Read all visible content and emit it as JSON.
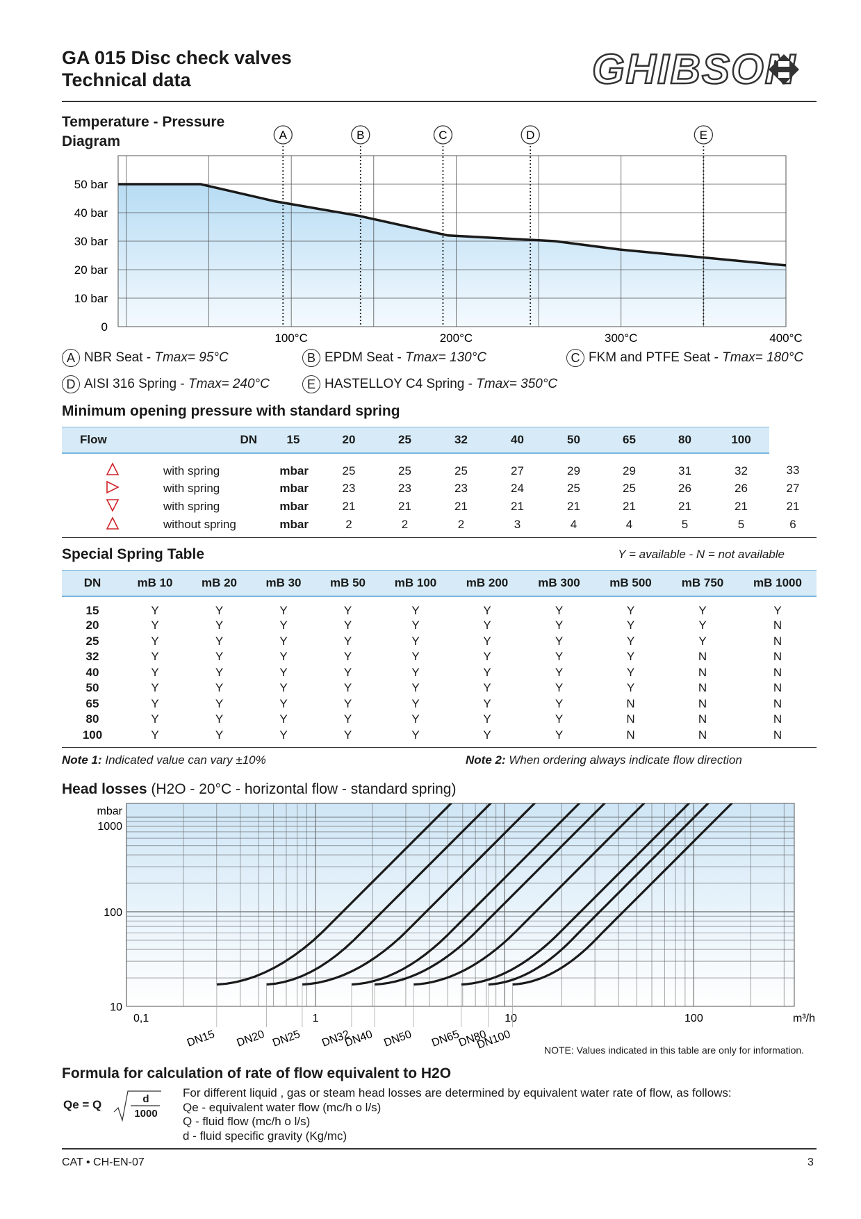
{
  "header": {
    "title_line1": "GA 015 Disc check valves",
    "title_line2": "Technical data",
    "logo_text": "GHIBSON"
  },
  "temp_pressure": {
    "title_line1": "Temperature - Pressure",
    "title_line2": "Diagram",
    "chart_data": {
      "type": "line",
      "x_unit": "°C",
      "y_ticks": [
        "0",
        "10 bar",
        "20 bar",
        "30 bar",
        "40 bar",
        "50 bar"
      ],
      "x_ticks": [
        "100°C",
        "200°C",
        "300°C",
        "400°C"
      ],
      "xlim": [
        -5,
        400
      ],
      "ylim": [
        0,
        60
      ],
      "series": [
        {
          "x": [
            -5,
            45,
            90,
            140,
            195,
            260,
            300,
            400
          ],
          "y": [
            50,
            50,
            44,
            39,
            32,
            30,
            27,
            21.5
          ]
        }
      ],
      "markers": [
        {
          "label": "A",
          "x": 95
        },
        {
          "label": "B",
          "x": 142
        },
        {
          "label": "C",
          "x": 192
        },
        {
          "label": "D",
          "x": 245
        },
        {
          "label": "E",
          "x": 350
        }
      ]
    },
    "legend": [
      {
        "letter": "A",
        "name": "NBR Seat - ",
        "tmax": "Tmax= 95°C"
      },
      {
        "letter": "B",
        "name": "EPDM Seat - ",
        "tmax": "Tmax= 130°C"
      },
      {
        "letter": "C",
        "name": "FKM and PTFE Seat - ",
        "tmax": "Tmax= 180°C"
      },
      {
        "letter": "D",
        "name": "AISI 316 Spring - ",
        "tmax": "Tmax= 240°C"
      },
      {
        "letter": "E",
        "name": "HASTELLOY C4 Spring - ",
        "tmax": "Tmax= 350°C"
      }
    ]
  },
  "opening_pressure": {
    "title": "Minimum opening pressure with standard spring",
    "chart_data": {
      "type": "table",
      "headers": [
        "Flow",
        "DN",
        "15",
        "20",
        "25",
        "32",
        "40",
        "50",
        "65",
        "80",
        "100"
      ],
      "rows": [
        {
          "icon": "triangle-up",
          "label": "with spring",
          "unit": "mbar",
          "values": [
            "25",
            "25",
            "25",
            "27",
            "29",
            "29",
            "31",
            "32",
            "33"
          ]
        },
        {
          "icon": "triangle-right",
          "label": "with spring",
          "unit": "mbar",
          "values": [
            "23",
            "23",
            "23",
            "24",
            "25",
            "25",
            "26",
            "26",
            "27"
          ]
        },
        {
          "icon": "triangle-down",
          "label": "with spring",
          "unit": "mbar",
          "values": [
            "21",
            "21",
            "21",
            "21",
            "21",
            "21",
            "21",
            "21",
            "21"
          ]
        },
        {
          "icon": "triangle-up",
          "label": "without spring",
          "unit": "mbar",
          "values": [
            "2",
            "2",
            "2",
            "3",
            "4",
            "4",
            "5",
            "5",
            "6"
          ]
        }
      ]
    }
  },
  "special_spring": {
    "title": "Special Spring Table",
    "availability_note": "Y = available - N = not available",
    "chart_data": {
      "type": "table",
      "headers": [
        "DN",
        "mB 10",
        "mB 20",
        "mB 30",
        "mB 50",
        "mB 100",
        "mB 200",
        "mB 300",
        "mB 500",
        "mB 750",
        "mB 1000"
      ],
      "rows": [
        [
          "15",
          "Y",
          "Y",
          "Y",
          "Y",
          "Y",
          "Y",
          "Y",
          "Y",
          "Y",
          "Y"
        ],
        [
          "20",
          "Y",
          "Y",
          "Y",
          "Y",
          "Y",
          "Y",
          "Y",
          "Y",
          "Y",
          "N"
        ],
        [
          "25",
          "Y",
          "Y",
          "Y",
          "Y",
          "Y",
          "Y",
          "Y",
          "Y",
          "Y",
          "N"
        ],
        [
          "32",
          "Y",
          "Y",
          "Y",
          "Y",
          "Y",
          "Y",
          "Y",
          "Y",
          "N",
          "N"
        ],
        [
          "40",
          "Y",
          "Y",
          "Y",
          "Y",
          "Y",
          "Y",
          "Y",
          "Y",
          "N",
          "N"
        ],
        [
          "50",
          "Y",
          "Y",
          "Y",
          "Y",
          "Y",
          "Y",
          "Y",
          "Y",
          "N",
          "N"
        ],
        [
          "65",
          "Y",
          "Y",
          "Y",
          "Y",
          "Y",
          "Y",
          "Y",
          "N",
          "N",
          "N"
        ],
        [
          "80",
          "Y",
          "Y",
          "Y",
          "Y",
          "Y",
          "Y",
          "Y",
          "N",
          "N",
          "N"
        ],
        [
          "100",
          "Y",
          "Y",
          "Y",
          "Y",
          "Y",
          "Y",
          "Y",
          "N",
          "N",
          "N"
        ]
      ]
    },
    "note1_label": "Note 1:",
    "note1_text": " Indicated value can vary  ±10%",
    "note2_label": "Note 2:",
    "note2_text": " When ordering always indicate flow direction"
  },
  "head_losses": {
    "title_bold": "Head losses",
    "title_rest": " (H2O - 20°C - horizontal flow - standard spring)",
    "note": "NOTE: Values  indicated in this table are only for information.",
    "chart_data": {
      "type": "line",
      "log_x": true,
      "log_y": true,
      "y_unit": "mbar",
      "x_unit": "m³/h",
      "y_ticks": [
        "10",
        "100",
        "1000"
      ],
      "x_ticks": [
        "0,1",
        "1",
        "10",
        "100"
      ],
      "xlim": [
        0.1,
        340
      ],
      "ylim": [
        10,
        1400
      ],
      "series": [
        {
          "name": "DN15",
          "start": 0.3,
          "knee": 1.05
        },
        {
          "name": "DN20",
          "start": 0.55,
          "knee": 1.7
        },
        {
          "name": "DN25",
          "start": 0.85,
          "knee": 2.9
        },
        {
          "name": "DN32",
          "start": 1.55,
          "knee": 5.0
        },
        {
          "name": "DN40",
          "start": 2.05,
          "knee": 6.8
        },
        {
          "name": "DN50",
          "start": 3.3,
          "knee": 11
        },
        {
          "name": "DN65",
          "start": 5.9,
          "knee": 19
        },
        {
          "name": "DN80",
          "start": 8.2,
          "knee": 24
        },
        {
          "name": "DN100",
          "start": 11,
          "knee": 32
        }
      ]
    }
  },
  "formula": {
    "title": "Formula for calculation of rate of flow equivalent to H2O",
    "lhs": "Qe = Q",
    "numerator": "d",
    "denominator": "1000",
    "lines": [
      "For different liquid , gas or steam head losses are determined by equivalent water rate of flow, as follows:",
      "Qe - equivalent water flow  (mc/h o l/s)",
      "Q   - fluid flow (mc/h o l/s)",
      "d   - fluid specific gravity (Kg/mc)"
    ]
  },
  "footer": {
    "catalog": "CAT • CH-EN-07",
    "page": "3"
  }
}
